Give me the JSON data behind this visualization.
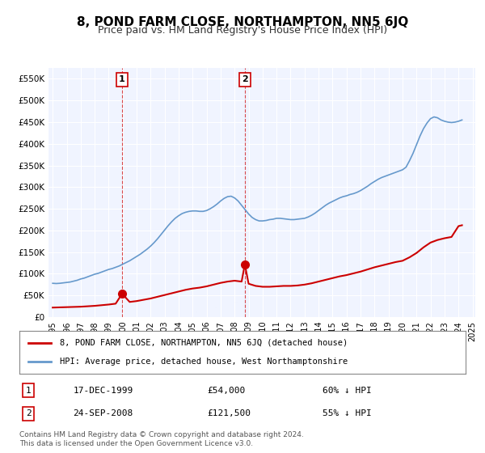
{
  "title": "8, POND FARM CLOSE, NORTHAMPTON, NN5 6JQ",
  "subtitle": "Price paid vs. HM Land Registry's House Price Index (HPI)",
  "title_fontsize": 11,
  "subtitle_fontsize": 9,
  "background_color": "#ffffff",
  "plot_bg_color": "#f0f4ff",
  "grid_color": "#ffffff",
  "ylim": [
    0,
    575000
  ],
  "yticks": [
    0,
    50000,
    100000,
    150000,
    200000,
    250000,
    300000,
    350000,
    400000,
    450000,
    500000,
    550000
  ],
  "ytick_labels": [
    "£0",
    "£50K",
    "£100K",
    "£150K",
    "£200K",
    "£250K",
    "£300K",
    "£350K",
    "£400K",
    "£450K",
    "£500K",
    "£550K"
  ],
  "red_line_color": "#cc0000",
  "blue_line_color": "#6699cc",
  "marker_color_red": "#cc0000",
  "marker_color_blue": "#6699cc",
  "sale1_year": 1999.96,
  "sale1_price": 54000,
  "sale2_year": 2008.73,
  "sale2_price": 121500,
  "legend_label_red": "8, POND FARM CLOSE, NORTHAMPTON, NN5 6JQ (detached house)",
  "legend_label_blue": "HPI: Average price, detached house, West Northamptonshire",
  "annotation1_label": "1",
  "annotation2_label": "2",
  "table_row1": [
    "1",
    "17-DEC-1999",
    "£54,000",
    "60% ↓ HPI"
  ],
  "table_row2": [
    "2",
    "24-SEP-2008",
    "£121,500",
    "55% ↓ HPI"
  ],
  "footer_text": "Contains HM Land Registry data © Crown copyright and database right 2024.\nThis data is licensed under the Open Government Licence v3.0.",
  "hpi_years": [
    1995.0,
    1995.25,
    1995.5,
    1995.75,
    1996.0,
    1996.25,
    1996.5,
    1996.75,
    1997.0,
    1997.25,
    1997.5,
    1997.75,
    1998.0,
    1998.25,
    1998.5,
    1998.75,
    1999.0,
    1999.25,
    1999.5,
    1999.75,
    2000.0,
    2000.25,
    2000.5,
    2000.75,
    2001.0,
    2001.25,
    2001.5,
    2001.75,
    2002.0,
    2002.25,
    2002.5,
    2002.75,
    2003.0,
    2003.25,
    2003.5,
    2003.75,
    2004.0,
    2004.25,
    2004.5,
    2004.75,
    2005.0,
    2005.25,
    2005.5,
    2005.75,
    2006.0,
    2006.25,
    2006.5,
    2006.75,
    2007.0,
    2007.25,
    2007.5,
    2007.75,
    2008.0,
    2008.25,
    2008.5,
    2008.75,
    2009.0,
    2009.25,
    2009.5,
    2009.75,
    2010.0,
    2010.25,
    2010.5,
    2010.75,
    2011.0,
    2011.25,
    2011.5,
    2011.75,
    2012.0,
    2012.25,
    2012.5,
    2012.75,
    2013.0,
    2013.25,
    2013.5,
    2013.75,
    2014.0,
    2014.25,
    2014.5,
    2014.75,
    2015.0,
    2015.25,
    2015.5,
    2015.75,
    2016.0,
    2016.25,
    2016.5,
    2016.75,
    2017.0,
    2017.25,
    2017.5,
    2017.75,
    2018.0,
    2018.25,
    2018.5,
    2018.75,
    2019.0,
    2019.25,
    2019.5,
    2019.75,
    2020.0,
    2020.25,
    2020.5,
    2020.75,
    2021.0,
    2021.25,
    2021.5,
    2021.75,
    2022.0,
    2022.25,
    2022.5,
    2022.75,
    2023.0,
    2023.25,
    2023.5,
    2023.75,
    2024.0,
    2024.25
  ],
  "hpi_values": [
    78000,
    77500,
    78000,
    79000,
    80000,
    81000,
    83000,
    85000,
    88000,
    90000,
    93000,
    96000,
    99000,
    101000,
    104000,
    107000,
    110000,
    112000,
    115000,
    118000,
    122000,
    126000,
    130000,
    135000,
    140000,
    145000,
    151000,
    157000,
    164000,
    172000,
    181000,
    191000,
    201000,
    211000,
    220000,
    228000,
    234000,
    239000,
    242000,
    244000,
    245000,
    245000,
    244000,
    244000,
    246000,
    250000,
    255000,
    261000,
    268000,
    274000,
    278000,
    279000,
    275000,
    268000,
    258000,
    248000,
    238000,
    230000,
    225000,
    222000,
    222000,
    223000,
    225000,
    226000,
    228000,
    228000,
    227000,
    226000,
    225000,
    225000,
    226000,
    227000,
    228000,
    231000,
    235000,
    240000,
    246000,
    252000,
    258000,
    263000,
    267000,
    271000,
    275000,
    278000,
    280000,
    283000,
    285000,
    288000,
    292000,
    297000,
    302000,
    308000,
    313000,
    318000,
    322000,
    325000,
    328000,
    331000,
    334000,
    337000,
    340000,
    346000,
    361000,
    378000,
    398000,
    418000,
    435000,
    448000,
    458000,
    462000,
    460000,
    455000,
    452000,
    450000,
    449000,
    450000,
    452000,
    455000
  ],
  "red_years": [
    1995.0,
    1995.5,
    1996.0,
    1996.5,
    1997.0,
    1997.5,
    1998.0,
    1998.5,
    1999.0,
    1999.5,
    1999.96,
    2000.5,
    2001.0,
    2001.5,
    2002.0,
    2002.5,
    2003.0,
    2003.5,
    2004.0,
    2004.5,
    2005.0,
    2005.5,
    2006.0,
    2006.5,
    2007.0,
    2007.5,
    2008.0,
    2008.5,
    2008.73,
    2009.0,
    2009.5,
    2010.0,
    2010.5,
    2011.0,
    2011.5,
    2012.0,
    2012.5,
    2013.0,
    2013.5,
    2014.0,
    2014.5,
    2015.0,
    2015.5,
    2016.0,
    2016.5,
    2017.0,
    2017.5,
    2018.0,
    2018.5,
    2019.0,
    2019.5,
    2020.0,
    2020.5,
    2021.0,
    2021.5,
    2022.0,
    2022.5,
    2023.0,
    2023.5,
    2024.0,
    2024.25
  ],
  "red_values": [
    22000,
    22500,
    23000,
    23500,
    24000,
    25000,
    26000,
    27500,
    29000,
    31000,
    54000,
    35000,
    37000,
    40000,
    43000,
    47000,
    51000,
    55000,
    59000,
    63000,
    66000,
    68000,
    71000,
    75000,
    79000,
    82000,
    84000,
    82000,
    121500,
    77000,
    72000,
    70000,
    70000,
    71000,
    72000,
    72000,
    73000,
    75000,
    78000,
    82000,
    86000,
    90000,
    94000,
    97000,
    101000,
    105000,
    110000,
    115000,
    119000,
    123000,
    127000,
    130000,
    138000,
    148000,
    161000,
    172000,
    178000,
    182000,
    185000,
    210000,
    212000
  ]
}
